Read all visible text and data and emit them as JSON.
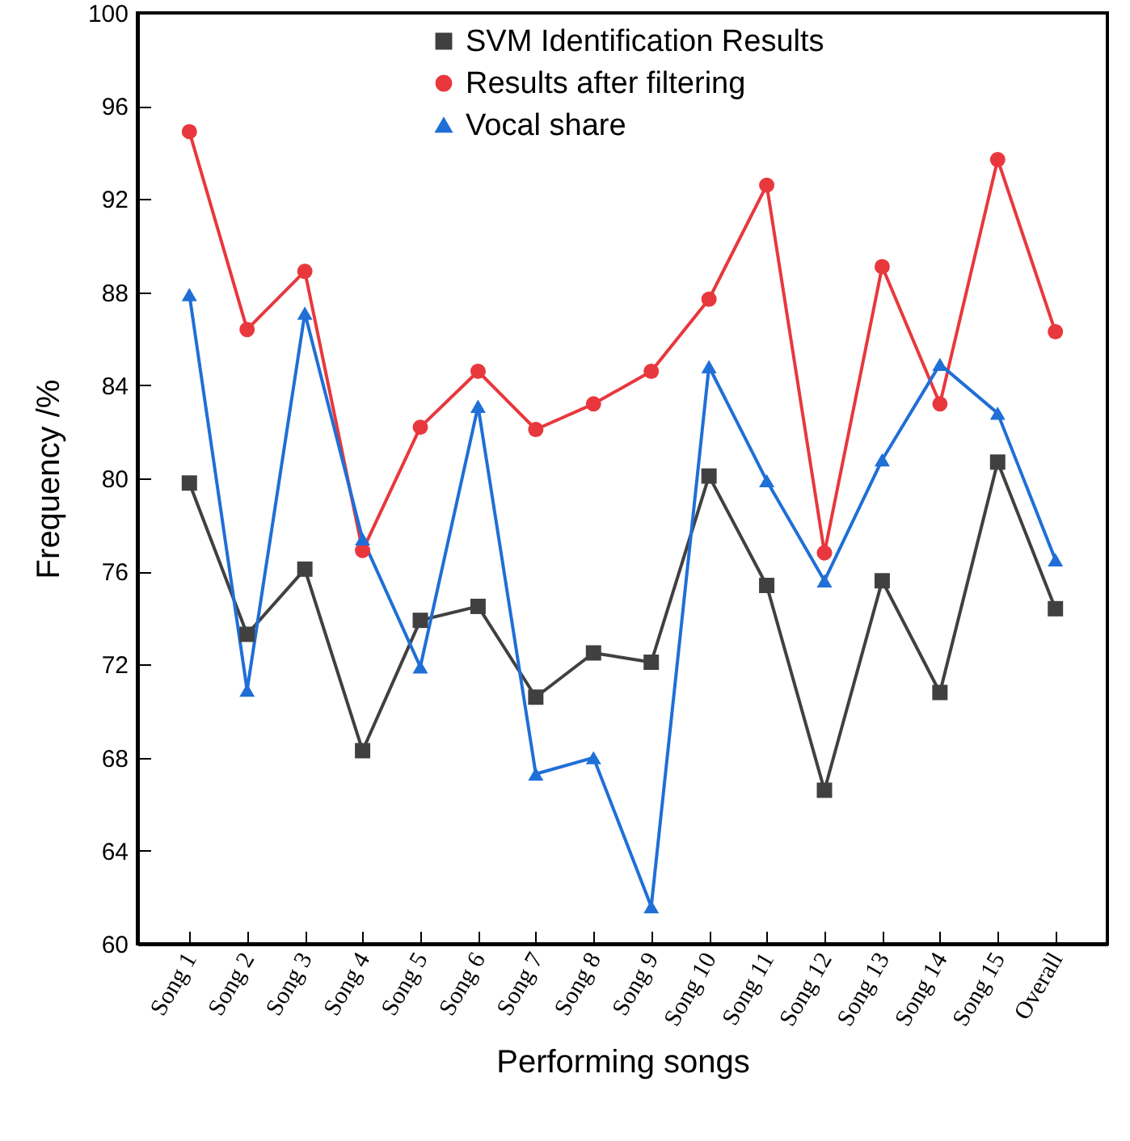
{
  "chart_data": {
    "type": "line",
    "xlabel": "Performing songs",
    "ylabel": "Frequency /%",
    "categories": [
      "Song 1",
      "Song 2",
      "Song 3",
      "Song 4",
      "Song 5",
      "Song 6",
      "Song 7",
      "Song 8",
      "Song 9",
      "Song 10",
      "Song 11",
      "Song 12",
      "Song 13",
      "Song 14",
      "Song 15",
      "Overall"
    ],
    "series": [
      {
        "name": "SVM Identification Results",
        "color": "#404040",
        "marker": "square",
        "values": [
          79.8,
          73.3,
          76.1,
          68.3,
          73.9,
          74.5,
          70.6,
          72.5,
          72.1,
          80.1,
          75.4,
          66.6,
          75.6,
          70.8,
          80.7,
          74.4
        ]
      },
      {
        "name": "Results after filtering",
        "color": "#e8383d",
        "marker": "circle",
        "values": [
          94.9,
          86.4,
          88.9,
          76.9,
          82.2,
          84.6,
          82.1,
          83.2,
          84.6,
          87.7,
          92.6,
          76.8,
          89.1,
          83.2,
          93.7,
          86.3
        ]
      },
      {
        "name": "Vocal share",
        "color": "#1f6fd6",
        "marker": "triangle",
        "values": [
          87.9,
          70.9,
          87.1,
          77.4,
          71.9,
          83.1,
          67.3,
          68.0,
          61.6,
          84.8,
          79.9,
          75.6,
          80.8,
          84.9,
          82.8,
          76.5
        ]
      }
    ],
    "ylim": [
      60,
      100
    ],
    "yticks": [
      60,
      64,
      68,
      72,
      76,
      80,
      84,
      88,
      92,
      96,
      100
    ],
    "grid": false,
    "legend": "top",
    "line_style": "solid"
  }
}
